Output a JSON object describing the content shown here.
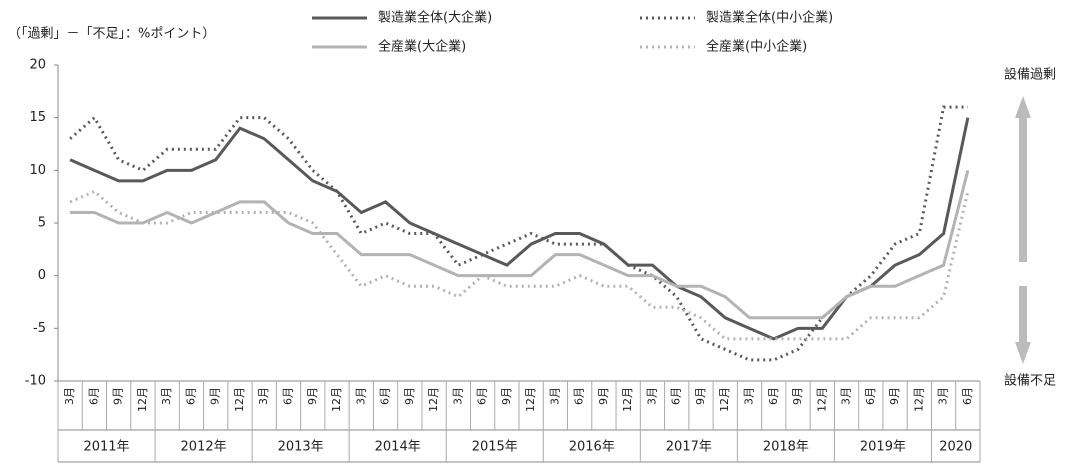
{
  "chart_data": {
    "type": "line",
    "unit_note": "（「過剰」－「不足」：%ポイント）",
    "annotations": [
      "設備過剰",
      "設備不足"
    ],
    "categories": [
      "3月",
      "6月",
      "9月",
      "12月",
      "3月",
      "6月",
      "9月",
      "12月",
      "3月",
      "6月",
      "9月",
      "12月",
      "3月",
      "6月",
      "9月",
      "12月",
      "3月",
      "6月",
      "9月",
      "12月",
      "3月",
      "6月",
      "9月",
      "12月",
      "3月",
      "6月",
      "9月",
      "12月",
      "3月",
      "6月",
      "9月",
      "12月",
      "3月",
      "6月",
      "9月",
      "12月",
      "3月",
      "6月"
    ],
    "year_groups": [
      "2011年",
      "2012年",
      "2013年",
      "2014年",
      "2015年",
      "2016年",
      "2017年",
      "2018年",
      "2019年",
      "2020"
    ],
    "ylim": [
      -10,
      20
    ],
    "yticks": [
      -10,
      -5,
      0,
      5,
      10,
      15,
      20
    ],
    "series": [
      {
        "name": "製造業全体(大企業)",
        "color": "#595959",
        "style": "solid",
        "values": [
          11,
          10,
          9,
          9,
          10,
          10,
          11,
          14,
          13,
          11,
          9,
          8,
          6,
          7,
          5,
          4,
          3,
          2,
          1,
          3,
          4,
          4,
          3,
          1,
          1,
          -1,
          -2,
          -4,
          -5,
          -6,
          -5,
          -5,
          -2,
          -1,
          1,
          2,
          4,
          15
        ]
      },
      {
        "name": "製造業全体(中小企業)",
        "color": "#595959",
        "style": "dotted",
        "values": [
          13,
          15,
          11,
          10,
          12,
          12,
          12,
          15,
          15,
          13,
          10,
          8,
          4,
          5,
          4,
          4,
          1,
          2,
          3,
          4,
          3,
          3,
          3,
          1,
          0,
          -2,
          -6,
          -7,
          -8,
          -8,
          -7,
          -4,
          -2,
          0,
          3,
          4,
          16,
          16
        ]
      },
      {
        "name": "全産業(大企業)",
        "color": "#b3b3b3",
        "style": "solid",
        "values": [
          6,
          6,
          5,
          5,
          6,
          5,
          6,
          7,
          7,
          5,
          4,
          4,
          2,
          2,
          2,
          1,
          0,
          0,
          0,
          0,
          2,
          2,
          1,
          0,
          0,
          -1,
          -1,
          -2,
          -4,
          -4,
          -4,
          -4,
          -2,
          -1,
          -1,
          0,
          1,
          10
        ]
      },
      {
        "name": "全産業(中小企業)",
        "color": "#b3b3b3",
        "style": "dotted",
        "values": [
          7,
          8,
          6,
          5,
          5,
          6,
          6,
          6,
          6,
          6,
          5,
          2,
          -1,
          0,
          -1,
          -1,
          -2,
          0,
          -1,
          -1,
          -1,
          0,
          -1,
          -1,
          -3,
          -3,
          -4,
          -6,
          -6,
          -6,
          -6,
          -6,
          -6,
          -4,
          -4,
          -4,
          -2,
          8
        ]
      }
    ]
  }
}
